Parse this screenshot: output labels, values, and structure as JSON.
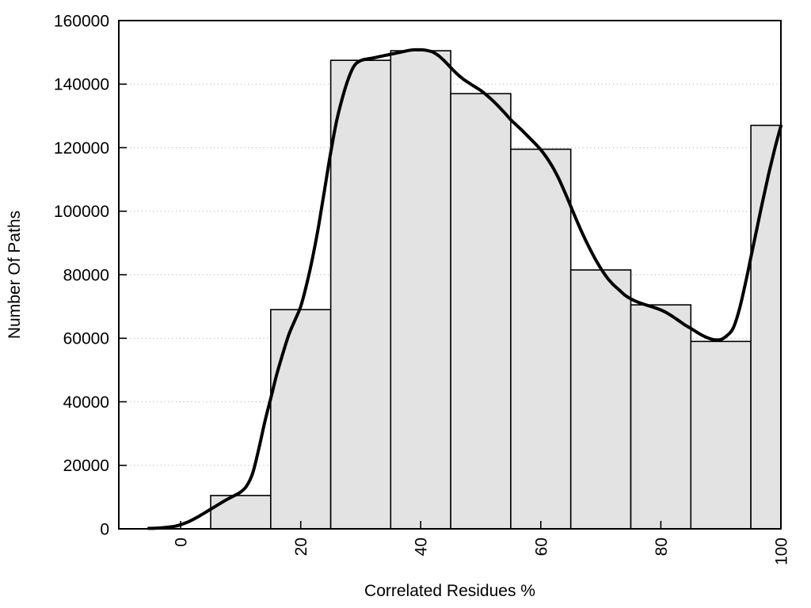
{
  "figure": {
    "background": "#ffffff"
  },
  "chart_data": {
    "type": "bar",
    "subtype": "histogram-with-smooth-curve",
    "title": "",
    "xlabel": "Correlated Residues %",
    "ylabel": "Number Of Paths",
    "xlim": [
      -10.3,
      100
    ],
    "ylim": [
      0,
      160000
    ],
    "xticks": [
      0,
      20,
      40,
      60,
      80,
      100
    ],
    "yticks": [
      0,
      20000,
      40000,
      60000,
      80000,
      100000,
      120000,
      140000,
      160000
    ],
    "grid": "horizontal dotted lines at y ticks",
    "legend": "none",
    "bin_width": 10,
    "bars": {
      "centers": [
        10,
        20,
        30,
        40,
        50,
        60,
        70,
        80,
        90,
        100
      ],
      "values": [
        10500,
        69000,
        147500,
        150500,
        137000,
        119500,
        81500,
        70500,
        59000,
        127000
      ],
      "note": "bins span center±5; last bin clipped at x=100 (right plot edge)"
    },
    "curve": {
      "x": [
        -5.3,
        -4,
        -2.5,
        -1,
        0,
        1.5,
        3,
        4.5,
        6,
        7.5,
        9,
        10,
        11,
        12,
        13,
        14,
        15,
        16,
        17,
        18,
        19,
        20,
        21,
        22,
        23,
        24,
        25,
        26,
        27,
        28,
        29,
        30,
        31,
        32,
        33,
        34,
        35,
        36,
        37,
        38,
        39,
        40,
        41,
        42,
        43,
        44,
        45,
        46,
        47,
        48,
        49,
        50,
        51,
        52,
        53,
        54,
        55,
        56,
        57,
        58,
        59,
        60,
        61,
        62,
        63,
        64,
        65,
        66,
        67,
        68,
        69,
        70,
        71,
        72,
        73,
        74,
        75,
        76,
        77,
        78,
        79,
        80,
        81,
        82,
        83,
        84,
        85,
        86,
        87,
        88,
        89,
        90,
        91,
        92,
        93,
        94,
        95,
        96,
        97,
        98,
        99,
        100
      ],
      "y": [
        150,
        220,
        450,
        800,
        1300,
        2400,
        3900,
        5600,
        7300,
        9000,
        10500,
        11600,
        13500,
        17500,
        25000,
        33500,
        41000,
        48500,
        55000,
        61000,
        65500,
        70000,
        77000,
        85500,
        95500,
        107000,
        118500,
        128500,
        136000,
        142000,
        146000,
        147400,
        147900,
        148200,
        148600,
        149000,
        149400,
        149800,
        150200,
        150600,
        150800,
        150800,
        150600,
        150100,
        148900,
        147200,
        145200,
        143300,
        141700,
        140400,
        139200,
        138000,
        136500,
        134800,
        132900,
        130900,
        128800,
        127000,
        125200,
        123300,
        121400,
        119300,
        116800,
        113800,
        110200,
        106000,
        101500,
        97000,
        92700,
        88800,
        85200,
        82000,
        79200,
        77000,
        75300,
        73600,
        72400,
        71500,
        70800,
        70200,
        69600,
        68900,
        68000,
        66800,
        65500,
        64200,
        63100,
        61900,
        60800,
        60000,
        59500,
        59600,
        60800,
        63000,
        68500,
        76500,
        85500,
        94500,
        103500,
        112000,
        119800,
        126800
      ]
    },
    "colors": {
      "bar_fill": "#e3e3e3",
      "bar_border": "#000000",
      "curve": "#000000",
      "grid": "#bfbfbf",
      "axis": "#000000",
      "text": "#000000"
    }
  }
}
